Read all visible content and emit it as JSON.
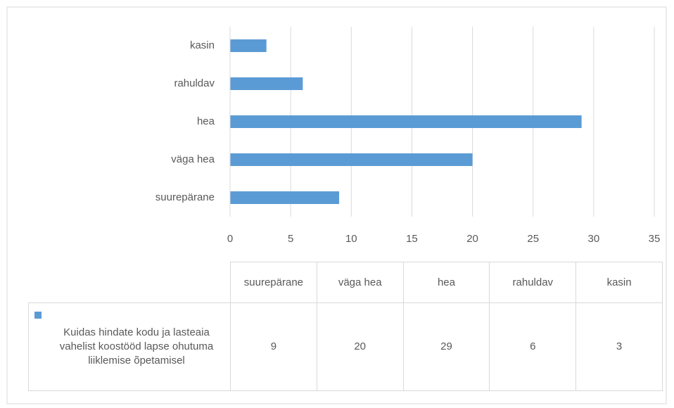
{
  "chart_data": {
    "type": "bar",
    "orientation": "horizontal",
    "categories": [
      "suurepärane",
      "väga hea",
      "hea",
      "rahuldav",
      "kasin"
    ],
    "series": [
      {
        "name": "Kuidas hindate  kodu ja lasteaia vahelist koostööd lapse ohutuma liiklemise õpetamisel",
        "color": "#5b9bd5",
        "values": [
          9,
          20,
          29,
          6,
          3
        ]
      }
    ],
    "xlim": [
      0,
      35
    ],
    "xticks": [
      0,
      5,
      10,
      15,
      20,
      25,
      30,
      35
    ],
    "grid": true,
    "data_table": true
  }
}
